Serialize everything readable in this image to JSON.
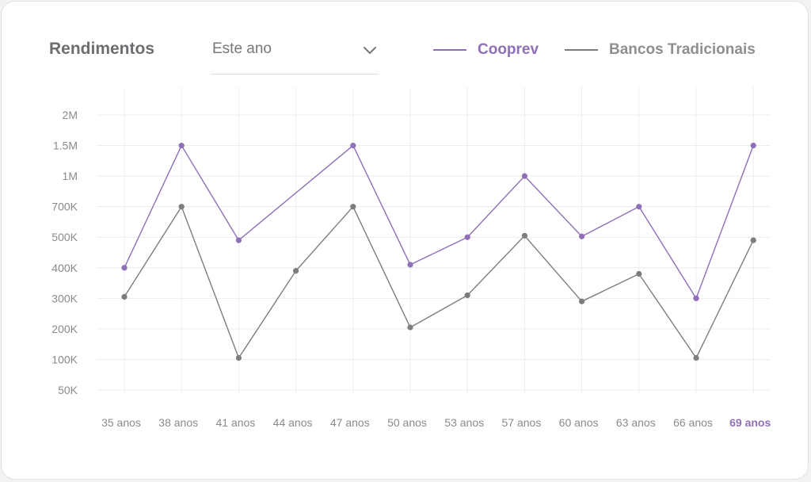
{
  "header": {
    "title": "Rendimentos",
    "period_select": {
      "value": "Este ano"
    }
  },
  "legend": {
    "items": [
      {
        "label": "Cooprev",
        "color": "#8f6fb7"
      },
      {
        "label": "Bancos Tradicionais",
        "color": "#7d7d7d"
      }
    ]
  },
  "colors": {
    "grid": "#ececef",
    "tick_text": "#8a8a8e",
    "highlight_tick": "#8f6fb7",
    "text_muted": "#8e8e93"
  },
  "chart_data": {
    "type": "line",
    "title": "Rendimentos",
    "xlabel": "",
    "ylabel": "",
    "categories": [
      "35 anos",
      "38 anos",
      "41 anos",
      "44 anos",
      "47 anos",
      "50 anos",
      "53 anos",
      "57 anos",
      "60 anos",
      "63 anos",
      "66 anos",
      "69 anos"
    ],
    "highlighted_category": "69 anos",
    "y_ticks": [
      "50K",
      "100K",
      "200K",
      "300K",
      "400K",
      "500K",
      "700K",
      "1M",
      "1.5M",
      "2M"
    ],
    "y_tick_values": [
      50000,
      100000,
      200000,
      300000,
      400000,
      500000,
      700000,
      1000000,
      1500000,
      2000000
    ],
    "y_scale": "categorical-ticks (evenly spaced labels)",
    "grid": true,
    "legend_position": "top-right",
    "series": [
      {
        "name": "Cooprev",
        "color": "#8f6fb7",
        "values": [
          400000,
          1500000,
          490000,
          null,
          1500000,
          410000,
          500000,
          1000000,
          505000,
          700000,
          300000,
          1500000
        ]
      },
      {
        "name": "Bancos Tradicionais",
        "color": "#7d7d7d",
        "values": [
          305000,
          700000,
          105000,
          390000,
          700000,
          205000,
          310000,
          510000,
          290000,
          380000,
          105000,
          490000
        ]
      }
    ]
  }
}
